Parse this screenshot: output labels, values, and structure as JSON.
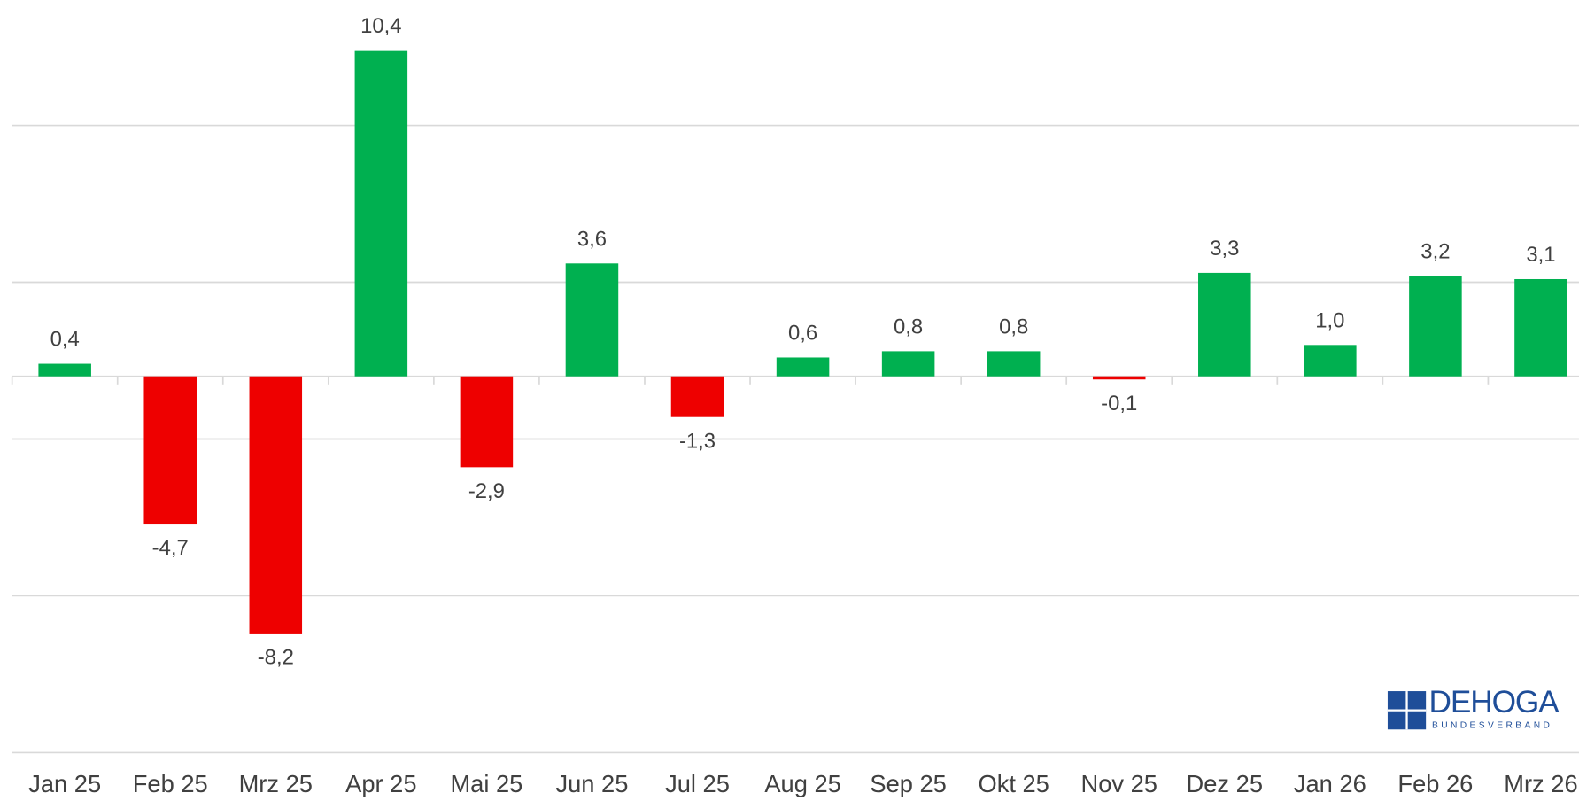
{
  "chart_data": {
    "type": "bar",
    "categories": [
      "Jan 25",
      "Feb 25",
      "Mrz 25",
      "Apr 25",
      "Mai 25",
      "Jun 25",
      "Jul 25",
      "Aug 25",
      "Sep 25",
      "Okt 25",
      "Nov 25",
      "Dez 25",
      "Jan 26",
      "Feb 26",
      "Mrz 26"
    ],
    "values": [
      0.4,
      -4.7,
      -8.2,
      10.4,
      -2.9,
      3.6,
      -1.3,
      0.6,
      0.8,
      0.8,
      -0.1,
      3.3,
      1.0,
      3.2,
      3.1
    ],
    "value_labels": [
      "0,4",
      "-4,7",
      "-8,2",
      "10,4",
      "-2,9",
      "3,6",
      "-1,3",
      "0,6",
      "0,8",
      "0,8",
      "-0,1",
      "3,3",
      "1,0",
      "3,2",
      "3,1"
    ],
    "positive_color": "#00b050",
    "negative_color": "#ee0000",
    "ylim": [
      -12,
      12
    ],
    "yticks": [
      -12,
      -7,
      -2,
      3,
      8
    ],
    "grid": true,
    "logo": {
      "name": "DEHOGA",
      "subtitle": "BUNDESVERBAND"
    }
  }
}
